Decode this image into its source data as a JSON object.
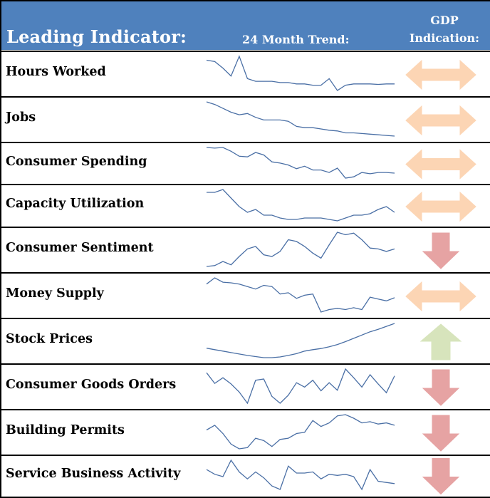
{
  "header": {
    "leading_indicator": "Leading Indicator:",
    "trend": "24 Month Trend:",
    "gdp_line1": "GDP",
    "gdp_line2": "Indication:"
  },
  "colors": {
    "header_bg": "#4f81bd",
    "sparkline": "#4a6fa5",
    "neutral": "#fcd5b4",
    "down": "#e6a3a3",
    "up": "#d7e4bc"
  },
  "rows": [
    {
      "label": "Hours Worked",
      "indication": "neutral",
      "trend": [
        40.6,
        40.55,
        40.3,
        40.0,
        40.75,
        39.9,
        39.8,
        39.8,
        39.8,
        39.75,
        39.75,
        39.7,
        39.7,
        39.65,
        39.65,
        39.9,
        39.45,
        39.65,
        39.7,
        39.7,
        39.7,
        39.68,
        39.7,
        39.7
      ]
    },
    {
      "label": "Jobs",
      "indication": "neutral",
      "trend": [
        100,
        98,
        95,
        92,
        90,
        91,
        88,
        86,
        86,
        86,
        85,
        81,
        80,
        80,
        79,
        78,
        77.5,
        76,
        76,
        75.5,
        75,
        74.5,
        74,
        73.5
      ]
    },
    {
      "label": "Consumer Spending",
      "indication": "neutral",
      "trend": [
        10.0,
        9.9,
        10.0,
        9.4,
        8.6,
        8.5,
        9.2,
        8.8,
        7.7,
        7.5,
        7.2,
        6.6,
        7.0,
        6.4,
        6.4,
        6.0,
        6.7,
        5.1,
        5.3,
        6.0,
        5.8,
        6.0,
        6.0,
        5.9
      ]
    },
    {
      "label": "Capacity Utilization",
      "indication": "neutral",
      "trend": [
        81,
        81,
        82,
        79,
        76,
        74,
        75,
        73,
        73,
        72,
        71.5,
        71.5,
        72,
        72,
        72,
        71.5,
        71,
        72,
        73,
        73,
        73.5,
        75,
        76,
        74
      ]
    },
    {
      "label": "Consumer Sentiment",
      "indication": "down",
      "trend": [
        57,
        57.5,
        60,
        58,
        63,
        67.5,
        69,
        64,
        63,
        66,
        73,
        72,
        69,
        65,
        62,
        70,
        77.5,
        76,
        77,
        73,
        68,
        67.5,
        66,
        67.5
      ]
    },
    {
      "label": "Money Supply",
      "indication": "neutral",
      "trend": [
        8.2,
        9.2,
        8.5,
        8.4,
        8.2,
        7.8,
        7.4,
        8.0,
        7.8,
        6.6,
        6.8,
        5.9,
        6.4,
        6.6,
        3.7,
        4.1,
        4.3,
        4.1,
        4.4,
        4.1,
        6.1,
        5.8,
        5.5,
        6.0
      ]
    },
    {
      "label": "Stock Prices",
      "indication": "up",
      "trend": [
        900,
        880,
        860,
        840,
        820,
        800,
        785,
        770,
        770,
        780,
        800,
        825,
        860,
        880,
        895,
        920,
        950,
        990,
        1035,
        1080,
        1125,
        1160,
        1200,
        1240
      ]
    },
    {
      "label": "Consumer Goods Orders",
      "indication": "down",
      "trend": [
        2.3,
        0.6,
        1.5,
        0.5,
        -0.8,
        -2.6,
        1.1,
        1.3,
        -1.5,
        -2.6,
        -1.3,
        0.7,
        0.0,
        1.1,
        -0.6,
        0.7,
        -0.5,
        2.9,
        1.5,
        0.0,
        2.0,
        0.5,
        -0.9,
        1.8
      ]
    },
    {
      "label": "Building Permits",
      "indication": "down",
      "trend": [
        880,
        920,
        850,
        760,
        720,
        730,
        810,
        790,
        740,
        800,
        810,
        850,
        860,
        960,
        910,
        940,
        1000,
        1010,
        980,
        940,
        950,
        930,
        940,
        920
      ]
    },
    {
      "label": "Service Business Activity",
      "indication": "down",
      "trend": [
        55,
        51,
        49,
        63,
        53,
        47,
        53,
        48,
        41,
        38,
        58,
        52,
        52,
        53,
        47,
        51,
        50,
        51,
        49,
        38,
        55,
        45,
        44,
        43
      ]
    }
  ]
}
